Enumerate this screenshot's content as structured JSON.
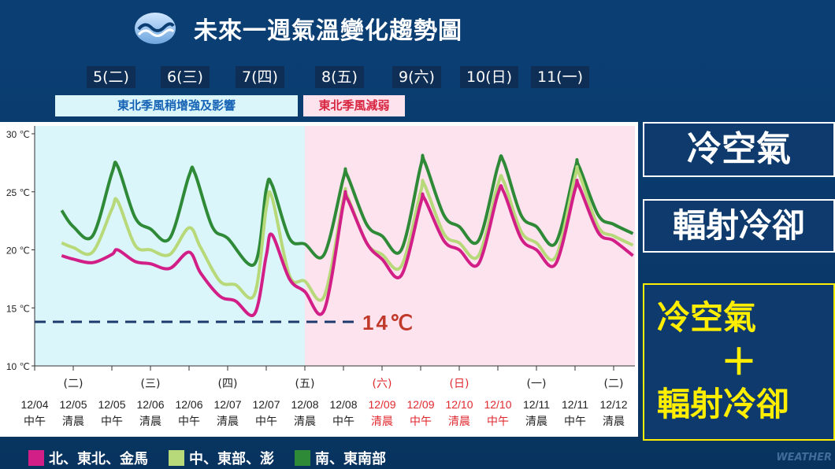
{
  "header": {
    "title": "未來一週氣溫變化趨勢圖"
  },
  "days": [
    "5(二)",
    "6(三)",
    "7(四)",
    "8(五)",
    "9(六)",
    "10(日)",
    "11(一)"
  ],
  "bands": {
    "first": "東北季風稍增強及影響",
    "second": "東北季風減弱"
  },
  "side_boxes": {
    "box1": "冷空氣",
    "box2": "輻射冷卻",
    "box3_line1": "冷空氣",
    "box3_plus": "＋",
    "box3_line2": "輻射冷卻"
  },
  "watermark": "WEATHER",
  "colors": {
    "north": "#d21f87",
    "central": "#b7d97a",
    "south": "#2f8a38",
    "band_blue": "#dbf6fb",
    "band_pink": "#fde3ee",
    "threshold": "#1d3a6e",
    "threshold_label": "#c0392b",
    "red_label": "#e0292f"
  },
  "chart_data": {
    "type": "line",
    "y_axis": {
      "ylim": [
        10,
        30
      ],
      "ticks": [
        10,
        15,
        20,
        25,
        30
      ],
      "tick_labels": [
        "10 ℃",
        "15 ℃",
        "20 ℃",
        "25 ℃",
        "30 ℃"
      ]
    },
    "x_ticks": [
      {
        "weekday": "",
        "date": "12/04",
        "period": "中午",
        "red": false
      },
      {
        "weekday": "(二)",
        "date": "12/05",
        "period": "清晨",
        "red": false
      },
      {
        "weekday": "",
        "date": "12/05",
        "period": "中午",
        "red": false
      },
      {
        "weekday": "(三)",
        "date": "12/06",
        "period": "清晨",
        "red": false
      },
      {
        "weekday": "",
        "date": "12/06",
        "period": "中午",
        "red": false
      },
      {
        "weekday": "(四)",
        "date": "12/07",
        "period": "清晨",
        "red": false
      },
      {
        "weekday": "",
        "date": "12/07",
        "period": "中午",
        "red": false
      },
      {
        "weekday": "(五)",
        "date": "12/08",
        "period": "清晨",
        "red": false
      },
      {
        "weekday": "",
        "date": "12/08",
        "period": "中午",
        "red": false
      },
      {
        "weekday": "(六)",
        "date": "12/09",
        "period": "清晨",
        "red": true
      },
      {
        "weekday": "",
        "date": "12/09",
        "period": "中午",
        "red": true
      },
      {
        "weekday": "(日)",
        "date": "12/10",
        "period": "清晨",
        "red": true
      },
      {
        "weekday": "",
        "date": "12/10",
        "period": "中午",
        "red": true
      },
      {
        "weekday": "(一)",
        "date": "12/11",
        "period": "清晨",
        "red": false
      },
      {
        "weekday": "",
        "date": "12/11",
        "period": "中午",
        "red": false
      },
      {
        "weekday": "(二)",
        "date": "12/12",
        "period": "清晨",
        "red": false
      }
    ],
    "series": [
      {
        "name": "北、東北、金馬",
        "color": "#d21f87",
        "points": [
          [
            0.7,
            19.5
          ],
          [
            1.0,
            19.2
          ],
          [
            1.5,
            18.9
          ],
          [
            2.0,
            19.6
          ],
          [
            2.15,
            20.0
          ],
          [
            2.6,
            19.0
          ],
          [
            3.0,
            18.8
          ],
          [
            3.5,
            18.4
          ],
          [
            4.0,
            19.8
          ],
          [
            4.3,
            18.0
          ],
          [
            4.8,
            16.0
          ],
          [
            5.2,
            15.6
          ],
          [
            5.7,
            14.5
          ],
          [
            6.0,
            19.5
          ],
          [
            6.15,
            21.3
          ],
          [
            6.6,
            17.5
          ],
          [
            7.0,
            16.4
          ],
          [
            7.5,
            14.8
          ],
          [
            8.0,
            24.0
          ],
          [
            8.1,
            24.4
          ],
          [
            8.6,
            20.6
          ],
          [
            9.0,
            19.2
          ],
          [
            9.5,
            17.8
          ],
          [
            10.0,
            24.0
          ],
          [
            10.1,
            24.4
          ],
          [
            10.6,
            20.8
          ],
          [
            11.0,
            20.0
          ],
          [
            11.5,
            18.8
          ],
          [
            12.0,
            24.8
          ],
          [
            12.15,
            25.0
          ],
          [
            12.6,
            21.0
          ],
          [
            13.0,
            20.0
          ],
          [
            13.5,
            18.8
          ],
          [
            14.0,
            25.2
          ],
          [
            14.1,
            25.5
          ],
          [
            14.6,
            21.5
          ],
          [
            15.0,
            20.8
          ],
          [
            15.5,
            19.5
          ]
        ]
      },
      {
        "name": "中、東部、澎",
        "color": "#b7d97a",
        "points": [
          [
            0.7,
            20.6
          ],
          [
            1.0,
            20.2
          ],
          [
            1.5,
            19.8
          ],
          [
            2.0,
            23.5
          ],
          [
            2.15,
            24.2
          ],
          [
            2.6,
            20.4
          ],
          [
            3.0,
            20.0
          ],
          [
            3.5,
            19.6
          ],
          [
            4.0,
            21.9
          ],
          [
            4.3,
            20.2
          ],
          [
            4.8,
            17.3
          ],
          [
            5.2,
            17.0
          ],
          [
            5.7,
            16.2
          ],
          [
            6.0,
            23.6
          ],
          [
            6.15,
            24.5
          ],
          [
            6.6,
            17.8
          ],
          [
            7.0,
            17.3
          ],
          [
            7.5,
            16.0
          ],
          [
            8.0,
            24.4
          ],
          [
            8.1,
            24.6
          ],
          [
            8.6,
            20.6
          ],
          [
            9.0,
            19.6
          ],
          [
            9.5,
            18.6
          ],
          [
            10.0,
            25.0
          ],
          [
            10.1,
            25.6
          ],
          [
            10.6,
            21.4
          ],
          [
            11.0,
            20.6
          ],
          [
            11.5,
            19.5
          ],
          [
            12.0,
            25.6
          ],
          [
            12.15,
            25.9
          ],
          [
            12.6,
            21.6
          ],
          [
            13.0,
            20.6
          ],
          [
            13.5,
            19.4
          ],
          [
            14.0,
            26.3
          ],
          [
            14.1,
            26.6
          ],
          [
            14.6,
            22.0
          ],
          [
            15.0,
            21.2
          ],
          [
            15.5,
            20.4
          ]
        ]
      },
      {
        "name": "南、東南部",
        "color": "#2f8a38",
        "points": [
          [
            0.7,
            23.4
          ],
          [
            1.0,
            22.0
          ],
          [
            1.5,
            21.2
          ],
          [
            2.0,
            26.6
          ],
          [
            2.15,
            27.2
          ],
          [
            2.6,
            22.8
          ],
          [
            3.0,
            21.8
          ],
          [
            3.5,
            21.0
          ],
          [
            4.0,
            26.4
          ],
          [
            4.15,
            26.6
          ],
          [
            4.6,
            22.0
          ],
          [
            5.0,
            21.0
          ],
          [
            5.7,
            18.8
          ],
          [
            6.0,
            25.2
          ],
          [
            6.15,
            25.6
          ],
          [
            6.6,
            21.0
          ],
          [
            7.0,
            20.5
          ],
          [
            7.5,
            19.6
          ],
          [
            8.0,
            26.2
          ],
          [
            8.1,
            26.4
          ],
          [
            8.6,
            22.2
          ],
          [
            9.0,
            21.2
          ],
          [
            9.5,
            20.0
          ],
          [
            10.0,
            27.2
          ],
          [
            10.1,
            27.6
          ],
          [
            10.6,
            23.0
          ],
          [
            11.0,
            22.0
          ],
          [
            11.5,
            20.8
          ],
          [
            12.0,
            27.2
          ],
          [
            12.15,
            27.6
          ],
          [
            12.6,
            23.0
          ],
          [
            13.0,
            22.0
          ],
          [
            13.5,
            20.6
          ],
          [
            14.0,
            27.0
          ],
          [
            14.1,
            27.2
          ],
          [
            14.6,
            23.0
          ],
          [
            15.0,
            22.2
          ],
          [
            15.5,
            21.4
          ]
        ]
      }
    ],
    "threshold": {
      "value": 13.8,
      "label": "14℃"
    },
    "background_split_tick": 7
  }
}
